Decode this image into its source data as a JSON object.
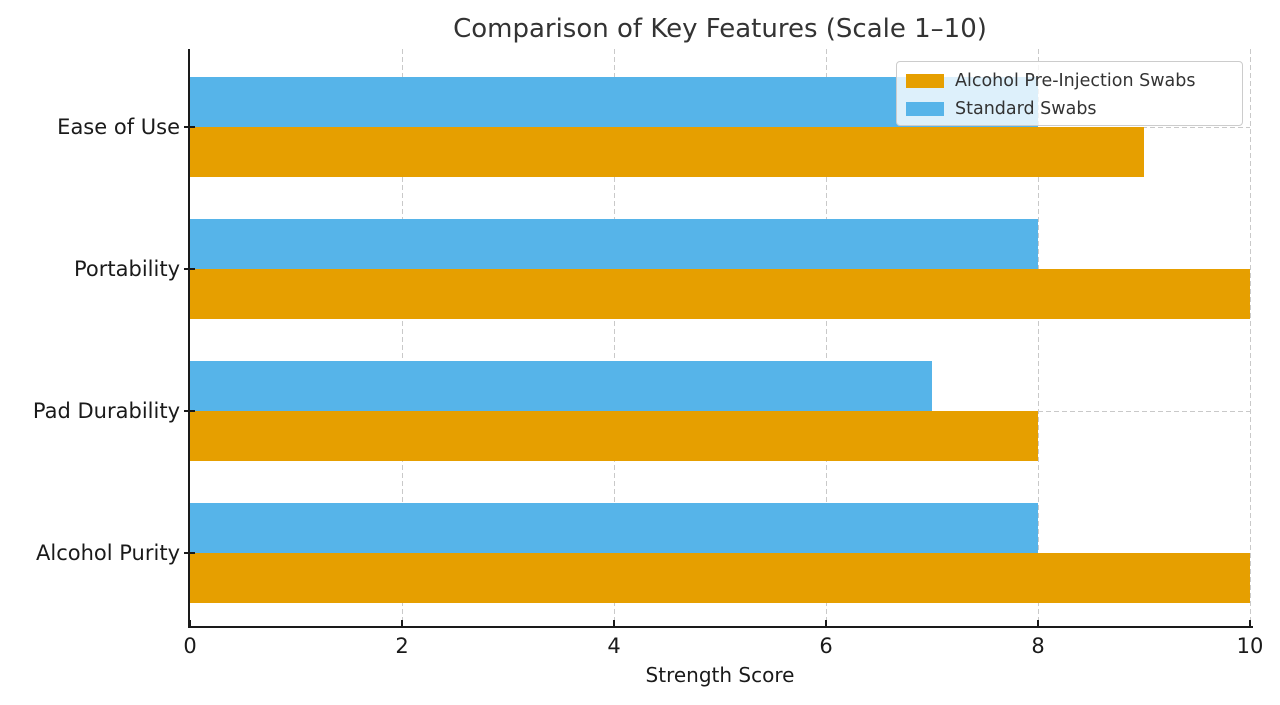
{
  "chart_data": {
    "type": "bar",
    "orientation": "horizontal",
    "title": "Comparison of Key Features (Scale 1–10)",
    "xlabel": "Strength Score",
    "ylabel": "",
    "categories": [
      "Ease of Use",
      "Portability",
      "Pad Durability",
      "Alcohol Purity"
    ],
    "series": [
      {
        "name": "Alcohol Pre-Injection Swabs",
        "color": "#E69F00",
        "values": [
          9,
          10,
          8,
          10
        ]
      },
      {
        "name": "Standard Swabs",
        "color": "#56B4E9",
        "values": [
          8,
          8,
          7,
          8
        ]
      }
    ],
    "xlim": [
      0,
      10
    ],
    "xticks": [
      0,
      2,
      4,
      6,
      8,
      10
    ],
    "grid": {
      "visible": true,
      "style": "dashed",
      "color": "#c9c9c9",
      "axes": "both"
    },
    "legend_position": "upper right",
    "background_color": "#ffffff",
    "axis_color": "#1a1a1a",
    "title_color": "#333333"
  }
}
